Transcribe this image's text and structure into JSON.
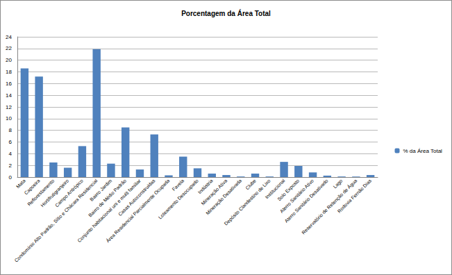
{
  "chart_data": {
    "type": "bar",
    "title": "Porcentagem da Área Total",
    "categories": [
      "Mata",
      "Capoeira",
      "Reflorestamento",
      "Hortifrutigranjeiro",
      "Campo Antrópico",
      "Condomínio Alto Padrão, Sítio e Chácara Residencial",
      "Bairro Jardim",
      "Bairro de Médio Padrão",
      "Conjunto habitacional uni e multi familiar",
      "Casas Autoconstruídas",
      "Área Residencial Parcialmente Ocupada",
      "Favela",
      "Loteamento Desocupado",
      "Indústria",
      "Mineração Ativa",
      "Mineração Desativada",
      "Clube",
      "Depósito Clandestino de Lixo",
      "Institucional",
      "Solo Exposto",
      "Aterro Sanitário Ativo",
      "Aterro Sanitário Desativado",
      "Lago",
      "Reservatório de Retenção de Água",
      "Rodovia Fernão Dias"
    ],
    "series": [
      {
        "name": "% da Área Total",
        "color": "#4f81bd",
        "values": [
          18.6,
          17.2,
          2.5,
          1.6,
          5.3,
          21.9,
          2.3,
          8.5,
          1.3,
          7.3,
          0.3,
          3.5,
          1.5,
          0.6,
          0.35,
          0.1,
          0.6,
          0.1,
          2.6,
          1.9,
          0.8,
          0.25,
          0.1,
          0.1,
          0.35
        ]
      }
    ],
    "ylim": [
      0,
      24
    ],
    "yticks": [
      0,
      2,
      4,
      6,
      8,
      10,
      12,
      14,
      16,
      18,
      20,
      22,
      24
    ],
    "grid": true,
    "legend": "right"
  }
}
